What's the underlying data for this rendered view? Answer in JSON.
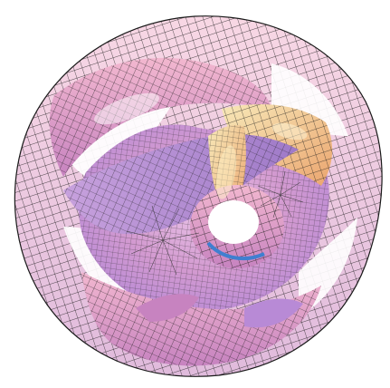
{
  "image": {
    "subject": "calabi-yau-manifold-wireframe-render",
    "background_color": "#ffffff",
    "palette": {
      "grid_line": "#1a1a1a",
      "pink": "#e8a6c8",
      "magenta": "#c98ac4",
      "violet": "#b48ad0",
      "lavender": "#d9b8e6",
      "peach": "#f3c89c",
      "cream": "#f6e6b0",
      "orange": "#e9a56a",
      "blue_accent": "#3f7fd0"
    }
  }
}
